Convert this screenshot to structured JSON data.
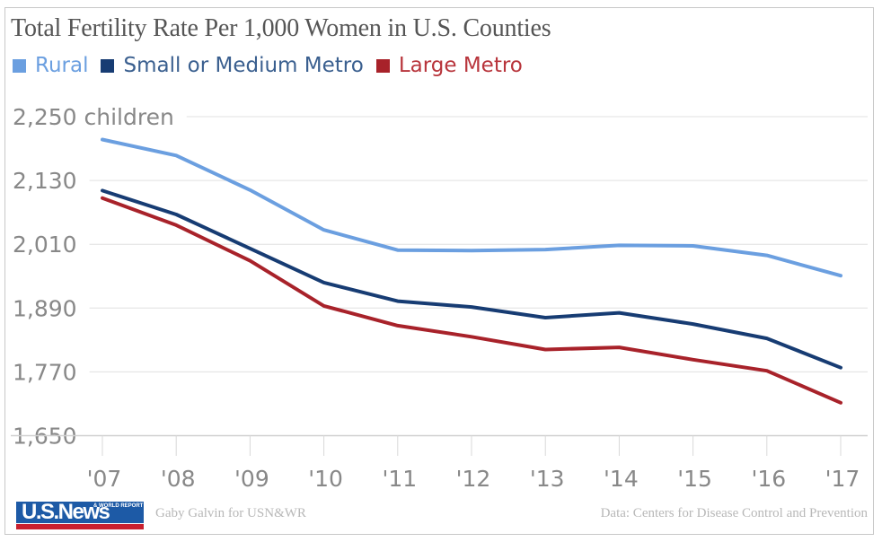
{
  "chart_data": {
    "type": "line",
    "title": "Total Fertility Rate Per 1,000 Women in U.S. Counties",
    "xlabel": "",
    "ylabel": "children",
    "x": [
      "'07",
      "'08",
      "'09",
      "'10",
      "'11",
      "'12",
      "'13",
      "'14",
      "'15",
      "'16",
      "'17"
    ],
    "yticks": [
      1650,
      1770,
      1890,
      2010,
      2130,
      2250
    ],
    "ytick_labels": [
      "1,650",
      "1,770",
      "1,890",
      "2,010",
      "2,130",
      "2,250 children"
    ],
    "ylim": [
      1650,
      2250
    ],
    "grid": true,
    "legend_position": "top-left",
    "series": [
      {
        "name": "Rural",
        "color": "#6b9fe0",
        "values": [
          2207,
          2177,
          2112,
          2037,
          1999,
          1998,
          2000,
          2008,
          2007,
          1989,
          1951
        ]
      },
      {
        "name": "Small or Medium Metro",
        "color": "#173c73",
        "values": [
          2111,
          2066,
          2002,
          1938,
          1903,
          1892,
          1872,
          1881,
          1860,
          1833,
          1778
        ]
      },
      {
        "name": "Large Metro",
        "color": "#a8222a",
        "values": [
          2097,
          2046,
          1979,
          1894,
          1857,
          1836,
          1812,
          1816,
          1793,
          1772,
          1712
        ]
      }
    ]
  },
  "footer": {
    "logo_text": "U.S.News",
    "logo_subtext": "& WORLD REPORT",
    "credit": "Gaby Galvin for USN&WR",
    "source": "Data: Centers for Disease Control and Prevention"
  },
  "colors": {
    "grid": "#e0e0e0",
    "tick_label": "#888888",
    "title": "#555555"
  }
}
